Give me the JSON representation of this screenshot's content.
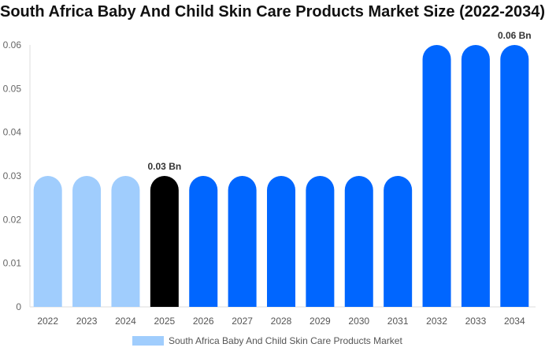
{
  "chart_data": {
    "type": "bar",
    "title": "South Africa Baby And Child Skin Care Products Market Size (2022-2034)",
    "categories": [
      "2022",
      "2023",
      "2024",
      "2025",
      "2026",
      "2027",
      "2028",
      "2029",
      "2030",
      "2031",
      "2032",
      "2033",
      "2034"
    ],
    "series": [
      {
        "name": "South Africa Baby And Child Skin Care Products Market",
        "values": [
          0.03,
          0.03,
          0.03,
          0.03,
          0.03,
          0.03,
          0.03,
          0.03,
          0.03,
          0.03,
          0.06,
          0.06,
          0.06
        ]
      }
    ],
    "data_labels": {
      "3": "0.03 Bn",
      "12": "0.06 Bn"
    },
    "yticks": [
      "0",
      "0.01",
      "0.02",
      "0.03",
      "0.04",
      "0.05",
      "0.06"
    ],
    "ylim": [
      0,
      0.06
    ],
    "grid": false,
    "legend": "bottom",
    "colors": {
      "history": "#a0cdfd",
      "current": "#000000",
      "forecast": "#0066ff"
    },
    "bar_color_groups": [
      "history",
      "history",
      "history",
      "current",
      "forecast",
      "forecast",
      "forecast",
      "forecast",
      "forecast",
      "forecast",
      "forecast",
      "forecast",
      "forecast"
    ]
  }
}
